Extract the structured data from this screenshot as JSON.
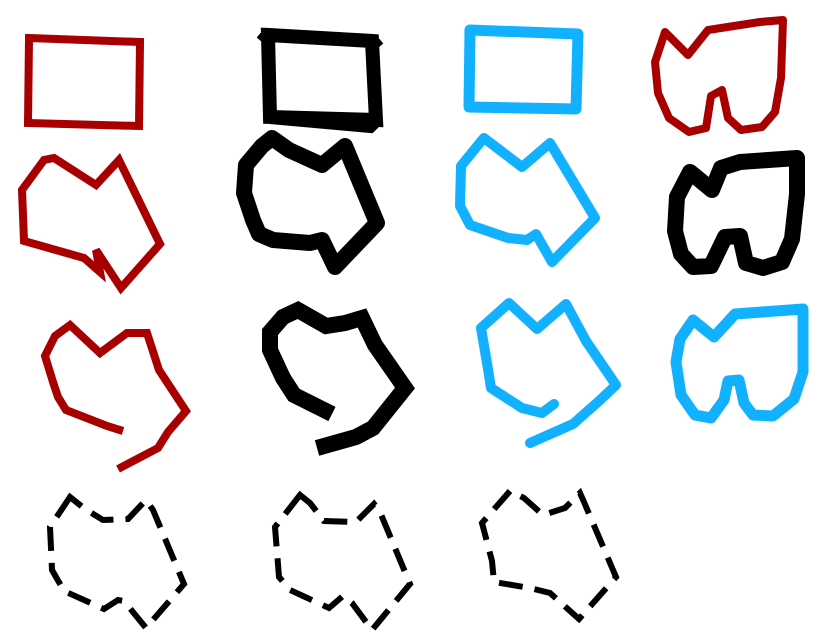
{
  "colors": {
    "red": "#a80000",
    "black": "#000000",
    "blue": "#11b1ff",
    "background": "#ffffff"
  },
  "shapes": [
    {
      "name": "rect-red",
      "color": "red",
      "style": "solid",
      "closed": true
    },
    {
      "name": "rect-black",
      "color": "black",
      "style": "solid",
      "closed": true
    },
    {
      "name": "rect-blue",
      "color": "blue",
      "style": "solid",
      "closed": true
    },
    {
      "name": "w-shape-red",
      "color": "red",
      "style": "solid",
      "closed": true
    },
    {
      "name": "blob-closed-red",
      "color": "red",
      "style": "solid",
      "closed": true
    },
    {
      "name": "blob-closed-black",
      "color": "black",
      "style": "solid",
      "closed": true
    },
    {
      "name": "blob-closed-blue",
      "color": "blue",
      "style": "solid",
      "closed": true
    },
    {
      "name": "w-shape-black",
      "color": "black",
      "style": "solid",
      "closed": true
    },
    {
      "name": "blob-open-red",
      "color": "red",
      "style": "solid",
      "closed": false
    },
    {
      "name": "blob-open-black",
      "color": "black",
      "style": "solid",
      "closed": false
    },
    {
      "name": "blob-open-blue",
      "color": "blue",
      "style": "solid",
      "closed": false
    },
    {
      "name": "w-shape-blue",
      "color": "blue",
      "style": "solid",
      "closed": true
    },
    {
      "name": "blob-dashed-1",
      "color": "black",
      "style": "dashed",
      "closed": true
    },
    {
      "name": "blob-dashed-2",
      "color": "black",
      "style": "dashed",
      "closed": true
    },
    {
      "name": "blob-dashed-3",
      "color": "black",
      "style": "dashed",
      "closed": true
    }
  ]
}
